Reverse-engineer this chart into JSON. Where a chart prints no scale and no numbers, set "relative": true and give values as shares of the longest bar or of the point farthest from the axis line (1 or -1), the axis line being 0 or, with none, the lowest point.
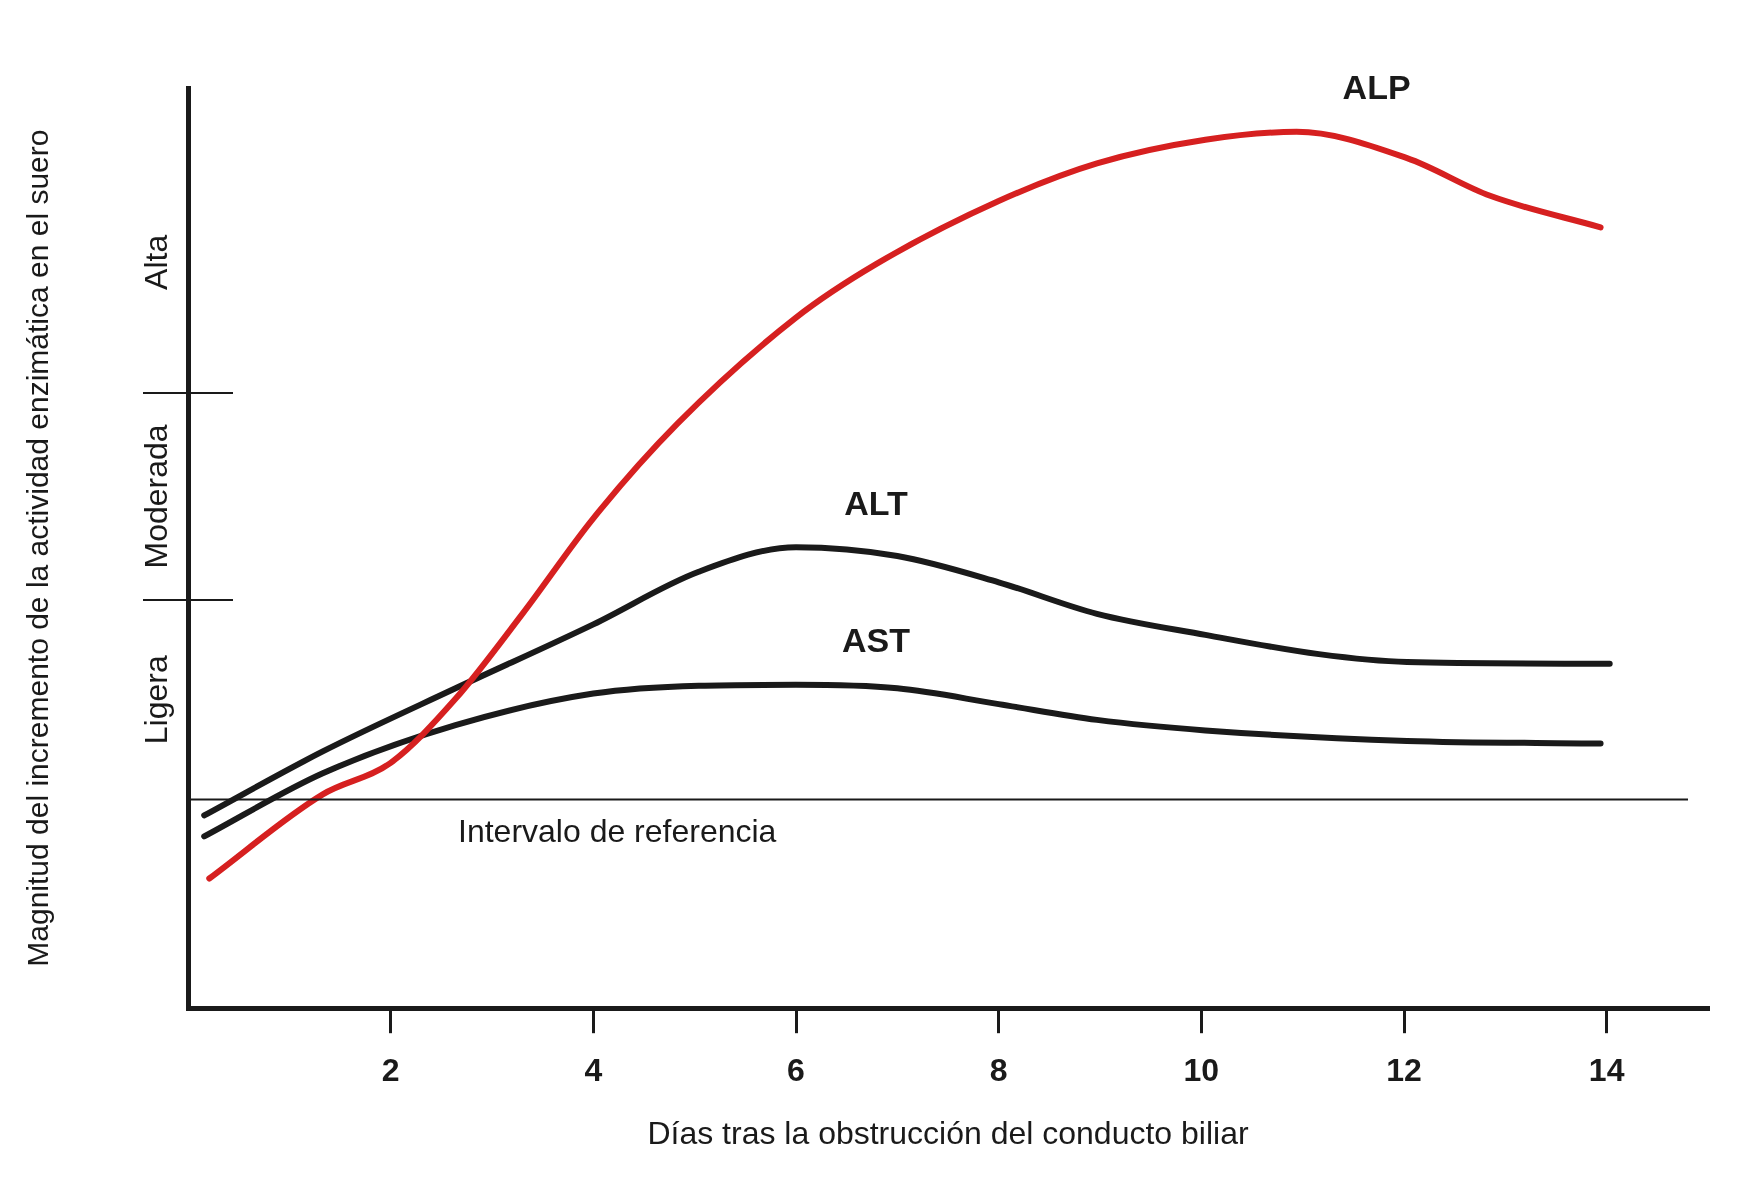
{
  "chart_data": {
    "type": "line",
    "relative": true,
    "xlabel": "Días tras la obstrucción del conducto biliar",
    "ylabel": "Magnitud del incremento de la actividad enzimática en el suero",
    "xlim": [
      0,
      15
    ],
    "xticks": [
      2,
      4,
      6,
      8,
      10,
      12,
      14
    ],
    "grid": false,
    "legend": false,
    "marker": "none",
    "line_style": "solid",
    "series": [
      {
        "name": "ALP",
        "color": "#d62020",
        "x": [
          0.21,
          1.33,
          2,
          2.64,
          3.3,
          4,
          4.83,
          6,
          6.79,
          8,
          8.97,
          10.04,
          10.94,
          12.03,
          12.85,
          13.94
        ],
        "values": [
          0.148,
          0.244,
          0.28,
          0.353,
          0.45,
          0.559,
          0.667,
          0.788,
          0.849,
          0.921,
          0.964,
          0.991,
          1.0,
          0.97,
          0.927,
          0.891
        ]
      },
      {
        "name": "ALT",
        "color": "#1a1a1a",
        "x": [
          0.16,
          1.33,
          2.64,
          4,
          5.04,
          6,
          7,
          8,
          8.97,
          10.04,
          11.16,
          12.03,
          14.03
        ],
        "values": [
          0.22,
          0.293,
          0.365,
          0.438,
          0.498,
          0.526,
          0.516,
          0.486,
          0.45,
          0.426,
          0.404,
          0.395,
          0.393
        ]
      },
      {
        "name": "AST",
        "color": "#1a1a1a",
        "x": [
          0.16,
          1.33,
          2.64,
          4,
          5.04,
          6,
          7,
          8,
          8.97,
          10.04,
          12.03,
          13.94
        ],
        "values": [
          0.196,
          0.268,
          0.323,
          0.359,
          0.368,
          0.369,
          0.365,
          0.347,
          0.329,
          0.317,
          0.305,
          0.302
        ]
      }
    ],
    "ref_lines": [
      {
        "axis": "y",
        "value": 0.238,
        "label": "Intervalo de referencia"
      }
    ],
    "annotations": [
      "Ligera",
      "Moderada",
      "Alta"
    ]
  }
}
